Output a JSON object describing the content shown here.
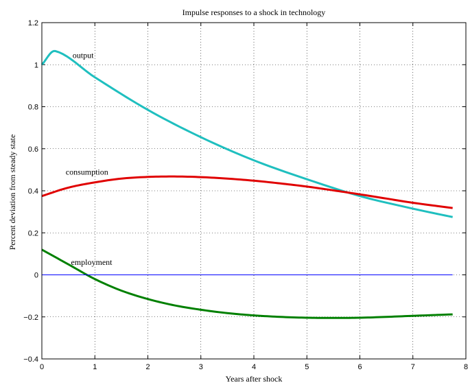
{
  "chart_data": {
    "type": "line",
    "title": "Impulse responses to a shock in technology",
    "xlabel": "Years after shock",
    "ylabel": "Percent deviation from steady state",
    "xlim": [
      0,
      8
    ],
    "ylim": [
      -0.4,
      1.2
    ],
    "xticks": [
      0,
      1,
      2,
      3,
      4,
      5,
      6,
      7,
      8
    ],
    "yticks": [
      -0.4,
      -0.2,
      0,
      0.2,
      0.4,
      0.6,
      0.8,
      1,
      1.2
    ],
    "xtick_labels": [
      "0",
      "1",
      "2",
      "3",
      "4",
      "5",
      "6",
      "7",
      "8"
    ],
    "ytick_labels": [
      "−0.4",
      "−0.2",
      "0",
      "0.2",
      "0.4",
      "0.6",
      "0.8",
      "1",
      "1.2"
    ],
    "grid": true,
    "series": [
      {
        "name": "output",
        "color": "#1fbfbf",
        "x": [
          0,
          0.25,
          1,
          2,
          3,
          4,
          5,
          6,
          7,
          7.75
        ],
        "y": [
          1.0,
          1.065,
          0.94,
          0.785,
          0.655,
          0.545,
          0.455,
          0.375,
          0.315,
          0.275
        ]
      },
      {
        "name": "consumption",
        "color": "#e00000",
        "x": [
          0,
          0.5,
          1,
          1.5,
          2,
          2.5,
          3,
          3.5,
          4,
          4.5,
          5,
          5.5,
          6,
          6.5,
          7,
          7.75
        ],
        "y": [
          0.375,
          0.415,
          0.44,
          0.458,
          0.466,
          0.468,
          0.465,
          0.458,
          0.448,
          0.435,
          0.42,
          0.402,
          0.383,
          0.363,
          0.343,
          0.318
        ]
      },
      {
        "name": "employment",
        "color": "#008000",
        "x": [
          0,
          0.5,
          1,
          1.5,
          2,
          2.5,
          3,
          3.5,
          4,
          4.5,
          5,
          5.5,
          6,
          6.5,
          7,
          7.75
        ],
        "y": [
          0.12,
          0.05,
          -0.02,
          -0.075,
          -0.115,
          -0.145,
          -0.166,
          -0.182,
          -0.193,
          -0.2,
          -0.204,
          -0.205,
          -0.204,
          -0.2,
          -0.195,
          -0.188
        ]
      },
      {
        "name": "",
        "color": "#0000ff",
        "x": [
          0,
          7.75
        ],
        "y": [
          0,
          0
        ]
      }
    ],
    "annotations": [
      {
        "text": "output",
        "x": 0.58,
        "y": 1.045
      },
      {
        "text": "consumption",
        "x": 0.45,
        "y": 0.49
      },
      {
        "text": "employment",
        "x": 0.55,
        "y": 0.06
      }
    ]
  }
}
